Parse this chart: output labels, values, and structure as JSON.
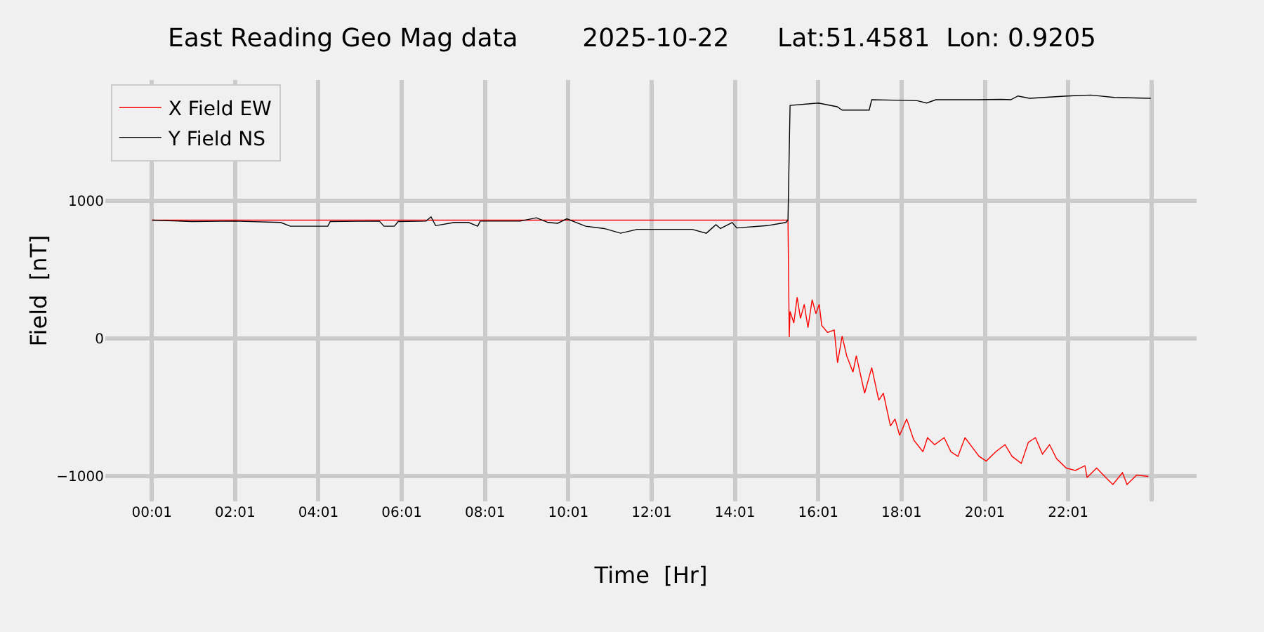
{
  "chart_data": {
    "type": "line",
    "title": "East Reading Geo Mag data        2025-10-22      Lat:51.4581  Lon: 0.9205",
    "xlabel": "Time  [Hr]",
    "ylabel": "Field  [nT]",
    "xlim": [
      -1.1,
      25.1
    ],
    "ylim": [
      -1184,
      1878
    ],
    "xticks": [
      {
        "value": 0.0167,
        "label": "00:01"
      },
      {
        "value": 2.0167,
        "label": "02:01"
      },
      {
        "value": 4.0167,
        "label": "04:01"
      },
      {
        "value": 6.0167,
        "label": "06:01"
      },
      {
        "value": 8.0167,
        "label": "08:01"
      },
      {
        "value": 10.0167,
        "label": "10:01"
      },
      {
        "value": 12.0167,
        "label": "12:01"
      },
      {
        "value": 14.0167,
        "label": "14:01"
      },
      {
        "value": 16.0167,
        "label": "16:01"
      },
      {
        "value": 18.0167,
        "label": "18:01"
      },
      {
        "value": 20.0167,
        "label": "20:01"
      },
      {
        "value": 22.0167,
        "label": "22:01"
      },
      {
        "value": 24.0167,
        "label": null
      }
    ],
    "yticks": [
      {
        "value": -1000,
        "label": "−1000"
      },
      0,
      1000
    ],
    "grid": true,
    "legend": "top left",
    "line_style": "solid",
    "marker": "none",
    "series": [
      {
        "name": "X Field EW",
        "color": "#ff0000",
        "x": [
          0.02,
          15.29,
          15.32,
          15.34,
          15.43,
          15.51,
          15.59,
          15.68,
          15.77,
          15.87,
          15.96,
          16.04,
          16.1,
          16.24,
          16.4,
          16.48,
          16.59,
          16.7,
          16.85,
          16.93,
          17.13,
          17.3,
          17.47,
          17.58,
          17.75,
          17.86,
          17.97,
          18.14,
          18.31,
          18.53,
          18.64,
          18.81,
          19.04,
          19.2,
          19.37,
          19.54,
          19.71,
          19.88,
          20.05,
          20.28,
          20.5,
          20.67,
          20.89,
          21.06,
          21.23,
          21.4,
          21.57,
          21.74,
          21.97,
          22.19,
          22.42,
          22.47,
          22.7,
          22.92,
          23.09,
          23.32,
          23.43,
          23.66,
          23.94
        ],
        "values": [
          860,
          860,
          10,
          197,
          112,
          299,
          146,
          248,
          78,
          282,
          180,
          248,
          95,
          44,
          61,
          -177,
          17,
          -126,
          -245,
          -126,
          -398,
          -211,
          -449,
          -398,
          -636,
          -585,
          -704,
          -585,
          -738,
          -823,
          -721,
          -772,
          -721,
          -823,
          -857,
          -721,
          -789,
          -857,
          -891,
          -823,
          -772,
          -857,
          -908,
          -755,
          -721,
          -840,
          -772,
          -874,
          -942,
          -959,
          -925,
          -1010,
          -942,
          -1010,
          -1061,
          -976,
          -1061,
          -993,
          -1003
        ]
      },
      {
        "name": "Y Field NS",
        "color": "#000000",
        "x": [
          0.03,
          0.98,
          1.99,
          3.11,
          3.34,
          4.24,
          4.3,
          5.48,
          5.59,
          5.84,
          5.93,
          6.6,
          6.72,
          6.83,
          7.28,
          7.62,
          7.84,
          7.9,
          8.86,
          9.25,
          9.53,
          9.76,
          9.98,
          10.43,
          10.88,
          11.27,
          11.67,
          12.0,
          12.54,
          12.99,
          13.33,
          13.56,
          13.67,
          13.95,
          14.06,
          14.79,
          15.24,
          15.29,
          15.34,
          16.02,
          16.47,
          16.59,
          17.24,
          17.3,
          18.39,
          18.62,
          18.84,
          19.85,
          20.41,
          20.64,
          20.81,
          21.09,
          21.99,
          22.56,
          23.12,
          24.0
        ],
        "values": [
          860,
          850,
          853,
          843,
          816,
          816,
          850,
          853,
          816,
          816,
          850,
          853,
          884,
          820,
          843,
          843,
          816,
          853,
          853,
          877,
          843,
          837,
          870,
          816,
          799,
          765,
          793,
          793,
          793,
          793,
          765,
          827,
          799,
          843,
          803,
          820,
          843,
          860,
          1694,
          1711,
          1684,
          1660,
          1660,
          1735,
          1728,
          1711,
          1735,
          1735,
          1738,
          1735,
          1762,
          1745,
          1762,
          1769,
          1752,
          1745
        ]
      }
    ]
  }
}
